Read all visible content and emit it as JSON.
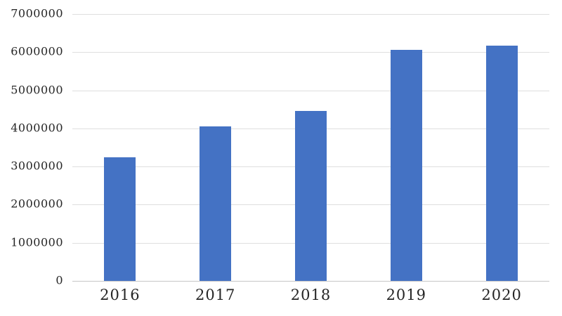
{
  "chart_data": {
    "type": "bar",
    "title": "",
    "xlabel": "",
    "ylabel": "",
    "categories": [
      "2016",
      "2017",
      "2018",
      "2019",
      "2020"
    ],
    "values": [
      3250000,
      4060000,
      4450000,
      6060000,
      6170000
    ],
    "ylim": [
      0,
      7000000
    ],
    "y_ticks": [
      0,
      1000000,
      2000000,
      3000000,
      4000000,
      5000000,
      6000000,
      7000000
    ],
    "y_tick_labels": [
      "0",
      "1000000",
      "2000000",
      "3000000",
      "4000000",
      "5000000",
      "6000000",
      "7000000"
    ],
    "grid": true,
    "legend": false,
    "legend_position": "none",
    "bar_color": "#4472C4",
    "gridline_color": "#DFDFDF",
    "axis_line_color": "#C6C6C6",
    "text_color": "#262626",
    "background_color": "#FFFFFF"
  }
}
